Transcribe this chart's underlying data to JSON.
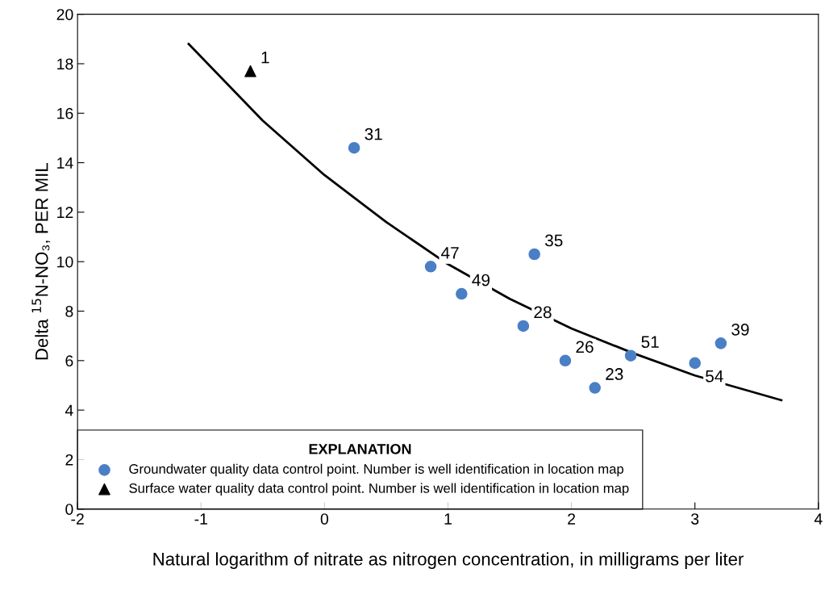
{
  "chart_data": {
    "type": "scatter",
    "xlabel": "Natural logarithm of nitrate as nitrogen concentration, in milligrams per liter",
    "ylabel": "Delta $^{15}$N-NO₃, PER MIL",
    "legend_title": "EXPLANATION",
    "series": [
      {
        "type": "line",
        "color": "#000000",
        "x": [
          -1.1,
          -0.5,
          0,
          0.5,
          1,
          1.5,
          2,
          2.5,
          3,
          3.7
        ],
        "values": [
          18.8,
          15.7,
          13.5,
          11.6,
          9.9,
          8.5,
          7.3,
          6.3,
          5.4,
          4.4
        ]
      },
      {
        "name": "Groundwater quality data control point. Number is well identification in location map",
        "color": "#4a7fc6",
        "marker": "circle",
        "x": [
          0.24,
          0.86,
          1.7,
          1.11,
          1.61,
          1.95,
          2.19,
          2.48,
          3.0,
          3.21
        ],
        "values": [
          14.6,
          9.8,
          10.3,
          8.7,
          7.4,
          6.0,
          4.9,
          6.2,
          5.9,
          6.7
        ]
      },
      {
        "name": "Surface water quality data control point. Number is well identification in location map",
        "color": "#000000",
        "marker": "triangle",
        "x": [
          -0.6
        ],
        "values": [
          17.7
        ]
      }
    ],
    "annotations": [
      {
        "text": "1",
        "x": -0.6,
        "y": 17.7
      },
      {
        "text": "31",
        "x": 0.24,
        "y": 14.6
      },
      {
        "text": "47",
        "x": 0.86,
        "y": 9.8
      },
      {
        "text": "35",
        "x": 1.7,
        "y": 10.3
      },
      {
        "text": "49",
        "x": 1.11,
        "y": 8.7
      },
      {
        "text": "28",
        "x": 1.61,
        "y": 7.4
      },
      {
        "text": "26",
        "x": 1.95,
        "y": 6.0
      },
      {
        "text": "23",
        "x": 2.19,
        "y": 4.9
      },
      {
        "text": "51",
        "x": 2.48,
        "y": 6.2
      },
      {
        "text": "54",
        "x": 3.0,
        "y": 5.9
      },
      {
        "text": "39",
        "x": 3.21,
        "y": 6.7
      }
    ],
    "xlim": [
      -2,
      4
    ],
    "xticks": [
      -2,
      -1,
      0,
      1,
      2,
      3,
      4
    ],
    "ylim": [
      0,
      20
    ],
    "yticks": [
      0,
      2,
      4,
      6,
      8,
      10,
      12,
      14,
      16,
      18,
      20
    ],
    "grid": false,
    "legend": "bottom left"
  }
}
